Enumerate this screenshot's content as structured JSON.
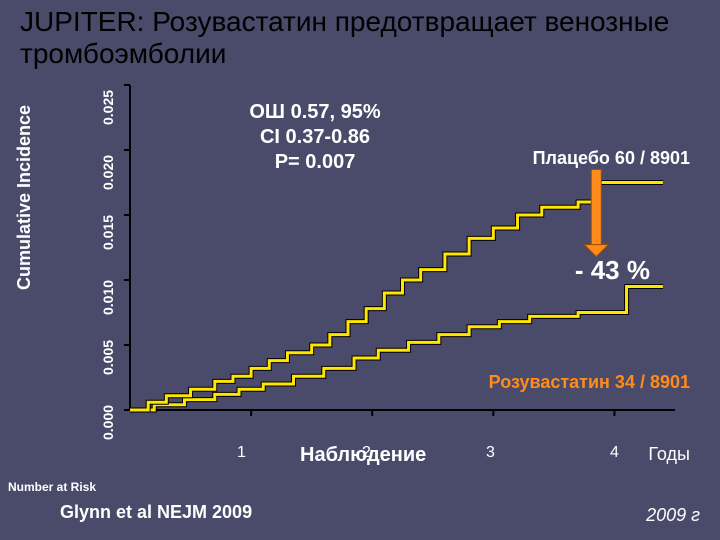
{
  "title": "JUPITER: Розувастатин предотвращает венозные тромбоэмболии",
  "y_axis": {
    "label": "Cumulative Incidence",
    "ticks": [
      "0.000",
      "0.005",
      "0.010",
      "0.015",
      "0.020",
      "0.025"
    ],
    "min": 0.0,
    "max": 0.025
  },
  "x_axis": {
    "label": "Наблюдение",
    "ticks_label": [
      "1",
      "2",
      "3",
      "4"
    ],
    "ticks_value": [
      1,
      2,
      3,
      4
    ],
    "min": 0,
    "max": 4.5,
    "years_label": "Годы"
  },
  "stats": {
    "line1": "ОШ 0.57, 95%",
    "line2": "CI 0.37-0.86",
    "line3": "P= 0.007"
  },
  "placebo": {
    "label": "Плацебо 60 / 8901",
    "color": "#ffe600",
    "points": [
      [
        0.0,
        0.0
      ],
      [
        0.15,
        0.0006
      ],
      [
        0.3,
        0.0011
      ],
      [
        0.5,
        0.0016
      ],
      [
        0.7,
        0.0022
      ],
      [
        0.85,
        0.0026
      ],
      [
        1.0,
        0.0032
      ],
      [
        1.15,
        0.0038
      ],
      [
        1.3,
        0.0044
      ],
      [
        1.5,
        0.005
      ],
      [
        1.65,
        0.0058
      ],
      [
        1.8,
        0.0068
      ],
      [
        1.95,
        0.0078
      ],
      [
        2.1,
        0.009
      ],
      [
        2.25,
        0.01
      ],
      [
        2.4,
        0.0108
      ],
      [
        2.6,
        0.012
      ],
      [
        2.8,
        0.0132
      ],
      [
        3.0,
        0.014
      ],
      [
        3.2,
        0.015
      ],
      [
        3.4,
        0.0156
      ],
      [
        3.7,
        0.016
      ],
      [
        3.85,
        0.0175
      ],
      [
        4.0,
        0.0175
      ],
      [
        4.4,
        0.0175
      ]
    ]
  },
  "rosuvastatin": {
    "label": "Розувастатин 34 / 8901",
    "color": "#ffe600",
    "points": [
      [
        0.0,
        0.0
      ],
      [
        0.2,
        0.0004
      ],
      [
        0.45,
        0.0008
      ],
      [
        0.7,
        0.0012
      ],
      [
        0.9,
        0.0016
      ],
      [
        1.1,
        0.002
      ],
      [
        1.35,
        0.0026
      ],
      [
        1.6,
        0.0032
      ],
      [
        1.85,
        0.004
      ],
      [
        2.05,
        0.0046
      ],
      [
        2.3,
        0.0052
      ],
      [
        2.55,
        0.0058
      ],
      [
        2.8,
        0.0064
      ],
      [
        3.05,
        0.0068
      ],
      [
        3.3,
        0.0072
      ],
      [
        3.7,
        0.0075
      ],
      [
        4.0,
        0.0075
      ],
      [
        4.1,
        0.0095
      ],
      [
        4.4,
        0.0095
      ]
    ]
  },
  "pct_change": "- 43 %",
  "arrow": {
    "color": "#ff8c1a"
  },
  "number_at_risk": "Number at Risk",
  "citation": "Glynn et al   NEJM 2009",
  "year_note": "2009 г",
  "plot": {
    "bg": "#4a4a6a",
    "axis_color": "#000000",
    "line_width": 3,
    "tick_len": 6
  }
}
